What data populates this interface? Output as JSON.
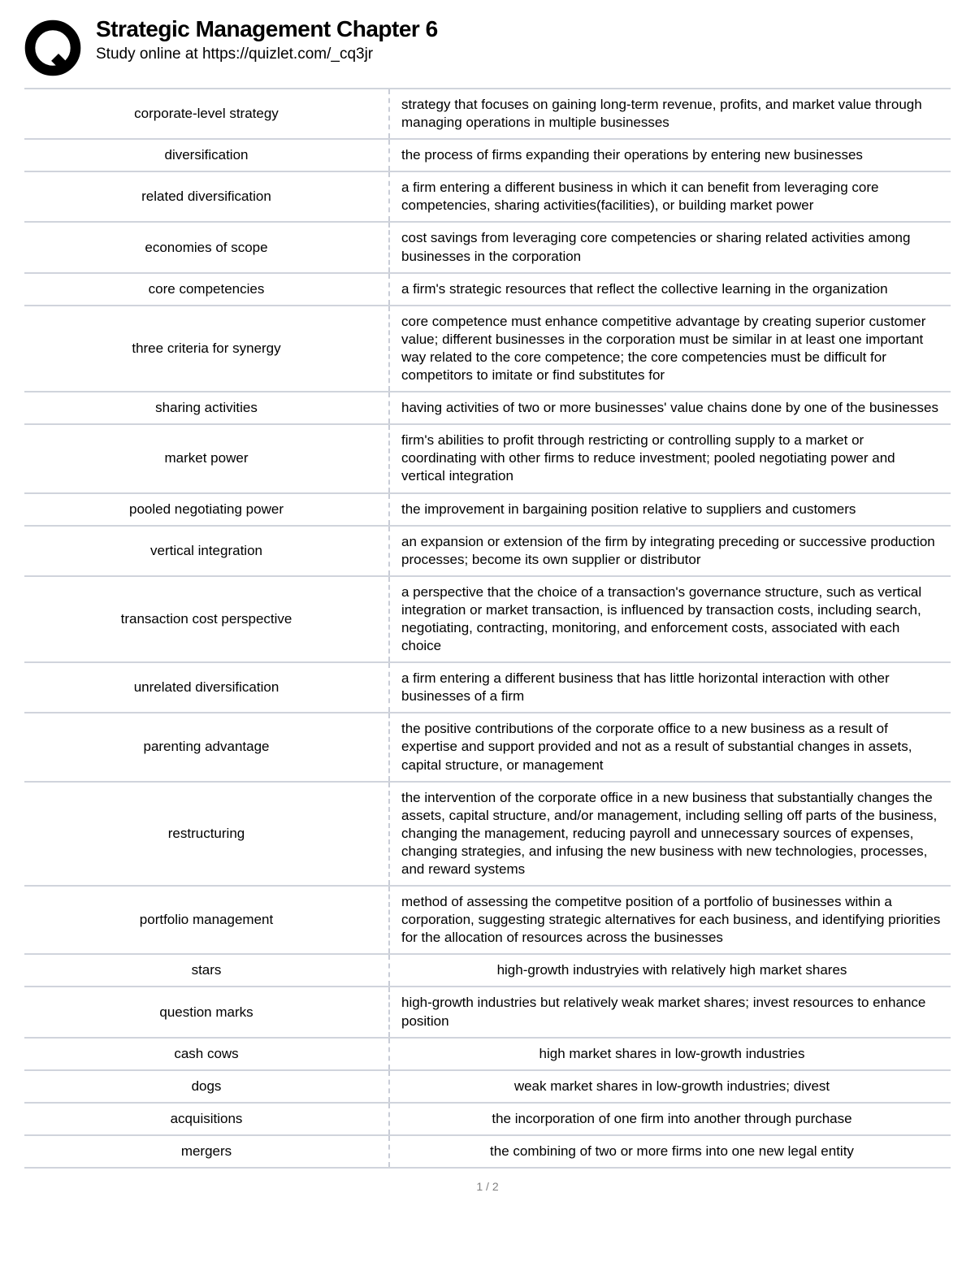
{
  "header": {
    "title": "Strategic Management Chapter 6",
    "subtitle": "Study online at https://quizlet.com/_cq3jr"
  },
  "colors": {
    "border": "#d0d4dc",
    "dashed": "#c8ccd6",
    "text": "#000000",
    "background": "#ffffff",
    "pagenum": "#808080"
  },
  "rows": [
    {
      "term": "corporate-level strategy",
      "def": "strategy that focuses on gaining long-term revenue, profits, and market value through managing operations in multiple businesses",
      "center": false
    },
    {
      "term": "diversification",
      "def": "the process of firms expanding their operations by entering new businesses",
      "center": false
    },
    {
      "term": "related diversification",
      "def": "a firm entering a different business in which it can benefit from leveraging core competencies, sharing activities(facilities), or building market power",
      "center": false
    },
    {
      "term": "economies of scope",
      "def": "cost savings from leveraging core competencies or sharing related activities among businesses in the corporation",
      "center": false
    },
    {
      "term": "core competencies",
      "def": "a firm's strategic resources that reflect the collective learning in the organization",
      "center": false
    },
    {
      "term": "three criteria for synergy",
      "def": "core competence must enhance competitive advantage by creating superior customer value; different businesses in the corporation must be similar in at least one important way related to the core competence; the core competencies must be difficult for competitors to imitate or find substitutes for",
      "center": false
    },
    {
      "term": "sharing activities",
      "def": "having activities of two or more businesses' value chains done by one of the businesses",
      "center": false
    },
    {
      "term": "market power",
      "def": "firm's abilities to profit through restricting or controlling supply to a market or coordinating with other firms to reduce investment; pooled negotiating power and vertical integration",
      "center": false
    },
    {
      "term": "pooled negotiating power",
      "def": "the improvement in bargaining position relative to suppliers and customers",
      "center": false
    },
    {
      "term": "vertical integration",
      "def": "an expansion or extension of the firm by integrating preceding or successive production processes; become its own supplier or distributor",
      "center": false
    },
    {
      "term": "transaction cost perspective",
      "def": "a perspective that the choice of a transaction's governance structure, such as vertical integration or market transaction, is influenced by transaction costs, including search, negotiating, contracting, monitoring, and enforcement costs, associated with each choice",
      "center": false
    },
    {
      "term": "unrelated diversification",
      "def": "a firm entering a different business that has little horizontal interaction with other businesses of a firm",
      "center": false
    },
    {
      "term": "parenting advantage",
      "def": "the positive contributions of the corporate office to a new business as a result of expertise and support provided and not as a result of substantial changes in assets, capital structure, or management",
      "center": false
    },
    {
      "term": "restructuring",
      "def": "the intervention of the corporate office in a new business that substantially changes the assets, capital structure, and/or management, including selling off parts of the business, changing the management, reducing payroll and unnecessary sources of expenses, changing strategies, and infusing the new business with new technologies, processes, and reward systems",
      "center": false
    },
    {
      "term": "portfolio management",
      "def": "method of assessing the competitve position of a portfolio of businesses within a corporation, suggesting strategic alternatives for each business, and identifying priorities for the allocation of resources across the businesses",
      "center": false
    },
    {
      "term": "stars",
      "def": "high-growth industryies with relatively high market shares",
      "center": true
    },
    {
      "term": "question marks",
      "def": "high-growth industries but relatively weak market shares; invest resources to enhance position",
      "center": false
    },
    {
      "term": "cash cows",
      "def": "high market shares in low-growth industries",
      "center": true
    },
    {
      "term": "dogs",
      "def": "weak market shares in low-growth industries; divest",
      "center": true
    },
    {
      "term": "acquisitions",
      "def": "the incorporation of one firm into another through purchase",
      "center": true
    },
    {
      "term": "mergers",
      "def": "the combining of two or more firms into one new legal entity",
      "center": true
    }
  ],
  "footer": {
    "page": "1 / 2"
  }
}
